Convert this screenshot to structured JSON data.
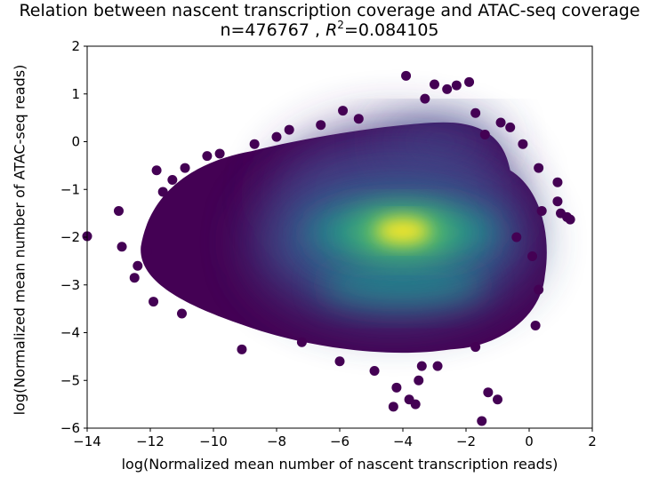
{
  "chart_data": {
    "type": "scatter",
    "title_line1": "Relation between nascent transcription coverage and ATAC-seq coverage",
    "title_line2_prefix": "n=476767 , ",
    "title_line2_r": "R",
    "title_line2_sup": "2",
    "title_line2_suffix": "=0.084105",
    "xlabel": "log(Normalized mean number of nascent transcription reads)",
    "ylabel": "log(Normalized mean number of ATAC-seq reads)",
    "xlim": [
      -14,
      2
    ],
    "ylim": [
      -6,
      2
    ],
    "xticks": [
      -14,
      -12,
      -10,
      -8,
      -6,
      -4,
      -2,
      0,
      2
    ],
    "yticks": [
      -6,
      -5,
      -4,
      -3,
      -2,
      -1,
      0,
      1,
      2
    ],
    "colormap": [
      "#440154",
      "#3b528b",
      "#21918c",
      "#5ec962",
      "#fde725"
    ],
    "density_peak": {
      "x": -4.0,
      "y": -1.85
    },
    "secondary_band_y": -3.0,
    "outer_points": [
      {
        "x": -14.0,
        "y": -1.98
      },
      {
        "x": -13.0,
        "y": -1.45
      },
      {
        "x": -12.9,
        "y": -2.2
      },
      {
        "x": -12.5,
        "y": -2.85
      },
      {
        "x": -12.4,
        "y": -2.6
      },
      {
        "x": -12.1,
        "y": -2.3
      },
      {
        "x": -11.8,
        "y": -0.6
      },
      {
        "x": -11.9,
        "y": -3.35
      },
      {
        "x": -11.6,
        "y": -1.05
      },
      {
        "x": -11.3,
        "y": -0.8
      },
      {
        "x": -10.9,
        "y": -0.55
      },
      {
        "x": -11.0,
        "y": -3.6
      },
      {
        "x": -10.2,
        "y": -0.3
      },
      {
        "x": -9.8,
        "y": -0.25
      },
      {
        "x": -9.1,
        "y": -4.35
      },
      {
        "x": -8.7,
        "y": -0.05
      },
      {
        "x": -8.0,
        "y": 0.1
      },
      {
        "x": -7.6,
        "y": 0.25
      },
      {
        "x": -7.2,
        "y": -4.2
      },
      {
        "x": -6.6,
        "y": 0.35
      },
      {
        "x": -6.0,
        "y": -4.6
      },
      {
        "x": -5.9,
        "y": 0.65
      },
      {
        "x": -5.4,
        "y": 0.48
      },
      {
        "x": -4.9,
        "y": -4.8
      },
      {
        "x": -4.3,
        "y": -5.55
      },
      {
        "x": -4.2,
        "y": -5.15
      },
      {
        "x": -3.8,
        "y": -5.4
      },
      {
        "x": -3.5,
        "y": -5.0
      },
      {
        "x": -3.6,
        "y": -5.5
      },
      {
        "x": -3.3,
        "y": 0.9
      },
      {
        "x": -3.4,
        "y": -4.7
      },
      {
        "x": -3.0,
        "y": 1.2
      },
      {
        "x": -2.9,
        "y": -4.7
      },
      {
        "x": -2.6,
        "y": 1.1
      },
      {
        "x": -2.3,
        "y": 1.18
      },
      {
        "x": -1.9,
        "y": 1.25
      },
      {
        "x": -1.7,
        "y": 0.6
      },
      {
        "x": -1.3,
        "y": -5.25
      },
      {
        "x": -1.4,
        "y": 0.15
      },
      {
        "x": -1.0,
        "y": -5.4
      },
      {
        "x": -0.9,
        "y": 0.4
      },
      {
        "x": -0.6,
        "y": 0.3
      },
      {
        "x": -0.2,
        "y": -0.05
      },
      {
        "x": -1.5,
        "y": -5.85
      },
      {
        "x": -1.7,
        "y": -4.3
      },
      {
        "x": 0.3,
        "y": -0.55
      },
      {
        "x": 0.4,
        "y": -1.45
      },
      {
        "x": 0.3,
        "y": -3.1
      },
      {
        "x": 0.2,
        "y": -3.85
      },
      {
        "x": -3.9,
        "y": 1.38
      },
      {
        "x": 0.9,
        "y": -0.85
      },
      {
        "x": 0.9,
        "y": -1.25
      },
      {
        "x": 1.0,
        "y": -1.5
      },
      {
        "x": 1.2,
        "y": -1.58
      },
      {
        "x": 1.3,
        "y": -1.63
      },
      {
        "x": 0.1,
        "y": -2.4
      },
      {
        "x": -0.4,
        "y": -2.0
      }
    ]
  }
}
